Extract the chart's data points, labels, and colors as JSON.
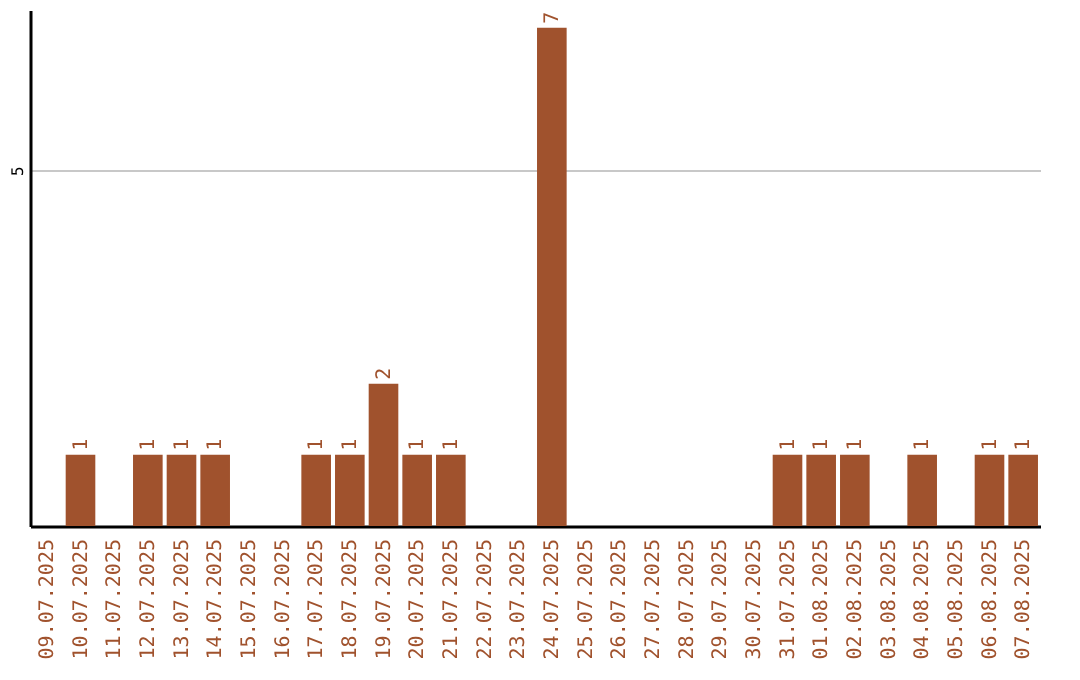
{
  "chart_data": {
    "type": "bar",
    "categories": [
      "09.07.2025",
      "10.07.2025",
      "11.07.2025",
      "12.07.2025",
      "13.07.2025",
      "14.07.2025",
      "15.07.2025",
      "16.07.2025",
      "17.07.2025",
      "18.07.2025",
      "19.07.2025",
      "20.07.2025",
      "21.07.2025",
      "22.07.2025",
      "23.07.2025",
      "24.07.2025",
      "25.07.2025",
      "26.07.2025",
      "27.07.2025",
      "28.07.2025",
      "29.07.2025",
      "30.07.2025",
      "31.07.2025",
      "01.08.2025",
      "02.08.2025",
      "03.08.2025",
      "04.08.2025",
      "05.08.2025",
      "06.08.2025",
      "07.08.2025"
    ],
    "values": [
      0,
      1,
      0,
      1,
      1,
      1,
      0,
      0,
      1,
      1,
      2,
      1,
      1,
      0,
      0,
      7,
      0,
      0,
      0,
      0,
      0,
      0,
      1,
      1,
      1,
      0,
      1,
      0,
      1,
      1
    ],
    "value_labels": [
      null,
      "1",
      null,
      "1",
      "1",
      "1",
      null,
      null,
      "1",
      "1",
      "2",
      "1",
      "1",
      null,
      null,
      "7",
      null,
      null,
      null,
      null,
      null,
      null,
      "1",
      "1",
      "1",
      null,
      "1",
      null,
      "1",
      "1"
    ],
    "color": "#a0522d",
    "ylim": [
      0,
      7.25
    ],
    "yticks": [
      5
    ],
    "grid": "y"
  }
}
